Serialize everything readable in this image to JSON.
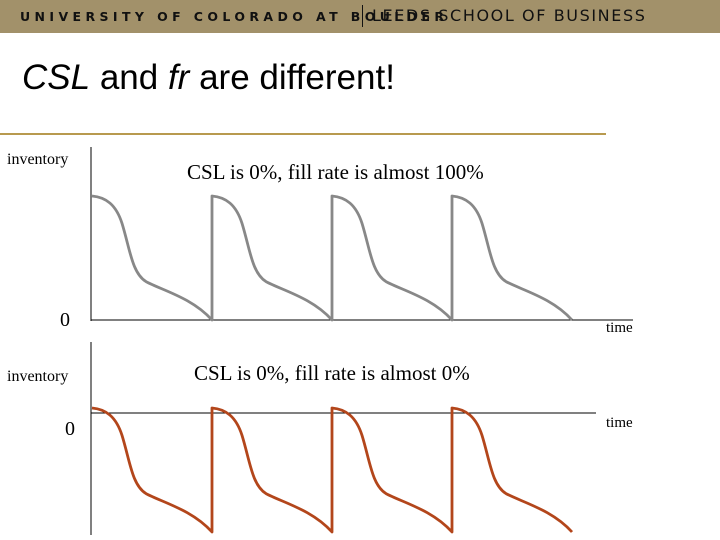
{
  "header": {
    "university": "UNIVERSITY OF COLORADO AT BOULDER",
    "school": "LEEDS SCHOOL OF BUSINESS"
  },
  "title": {
    "part1": "CSL",
    "part2": " and ",
    "part3": "fr",
    "part4": " are different!"
  },
  "colors": {
    "header_bar": "#a2916a",
    "title_rule": "#b89a4f",
    "top_curve": "#888888",
    "bottom_curve": "#b3461b"
  },
  "top_panel": {
    "y_label": "inventory",
    "zero_label": "0",
    "caption": "CSL is 0%, fill rate is almost 100%",
    "x_label": "time"
  },
  "bottom_panel": {
    "y_label": "inventory",
    "zero_label": "0",
    "caption": "CSL is 0%, fill rate is almost 0%",
    "x_label": "time"
  }
}
